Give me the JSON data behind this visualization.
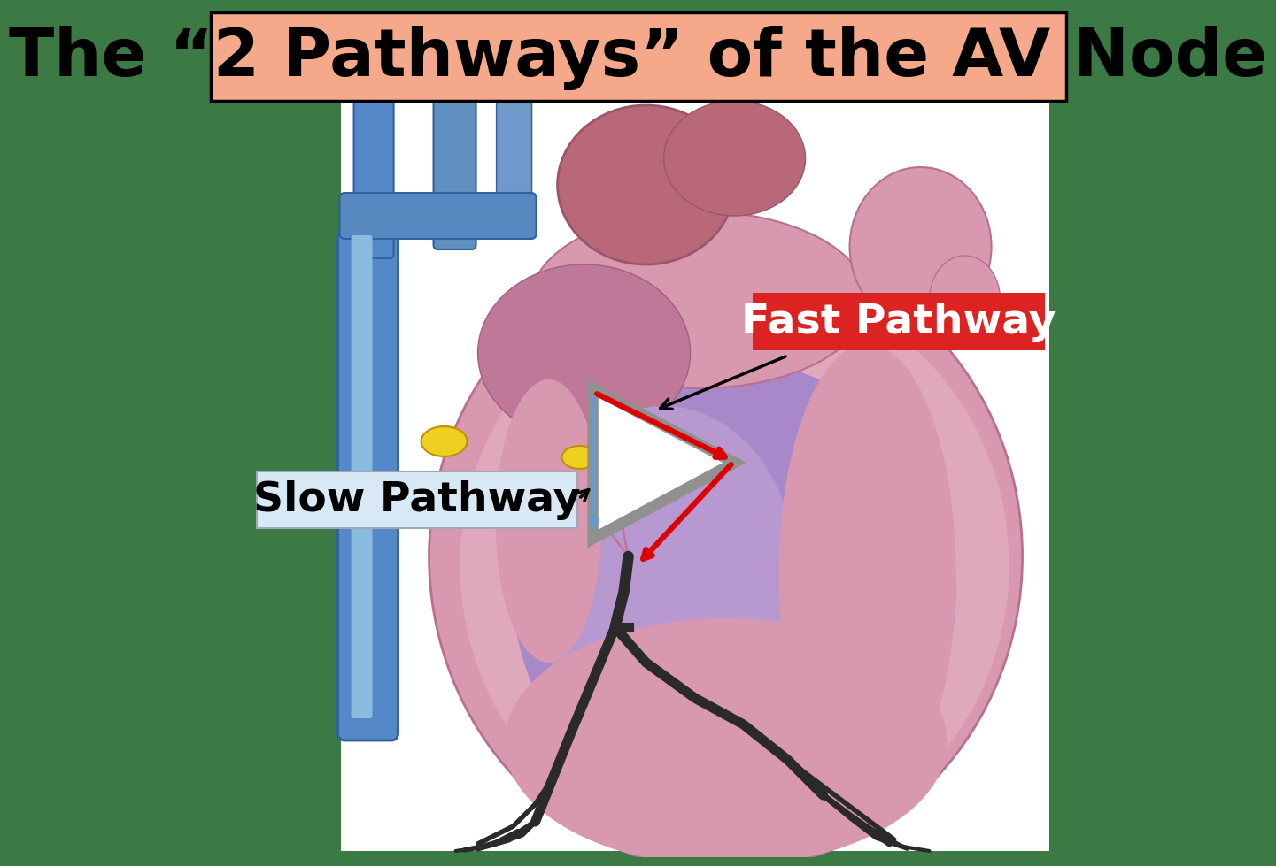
{
  "title": "The “2 Pathways” of the AV Node",
  "title_bg_color": "#F5A98A",
  "title_border_color": "#000000",
  "title_fontsize": 54,
  "bg_color": "#3B7A45",
  "fast_pathway_label": "Fast Pathway",
  "fast_pathway_bg": "#DD2222",
  "fast_pathway_text_color": "#FFFFFF",
  "fast_pathway_fontsize": 34,
  "slow_pathway_label": "Slow Pathway",
  "slow_pathway_bg": "#D8E8F5",
  "slow_pathway_border": "#A0A8B8",
  "slow_pathway_text_color": "#000000",
  "slow_pathway_fontsize": 34,
  "triangle_fill": "#FFFFFF",
  "triangle_outline": "#909090",
  "fast_line_color": "#DD0000",
  "slow_line_color": "#6699CC",
  "arrow_color": "#000000",
  "heart_bg": "#FFFFFF",
  "heart_outer_color": "#D8849A",
  "heart_inner_purple": "#9B7BB8",
  "heart_pink_light": "#E8A8B8",
  "heart_pink_medium": "#D088A0",
  "atrium_dark": "#C06878",
  "bundle_color": "#2A2A2A",
  "yellow_node": "#EDD020",
  "blue_vessel": "#5588C8",
  "blue_vessel_light": "#88BBDD"
}
